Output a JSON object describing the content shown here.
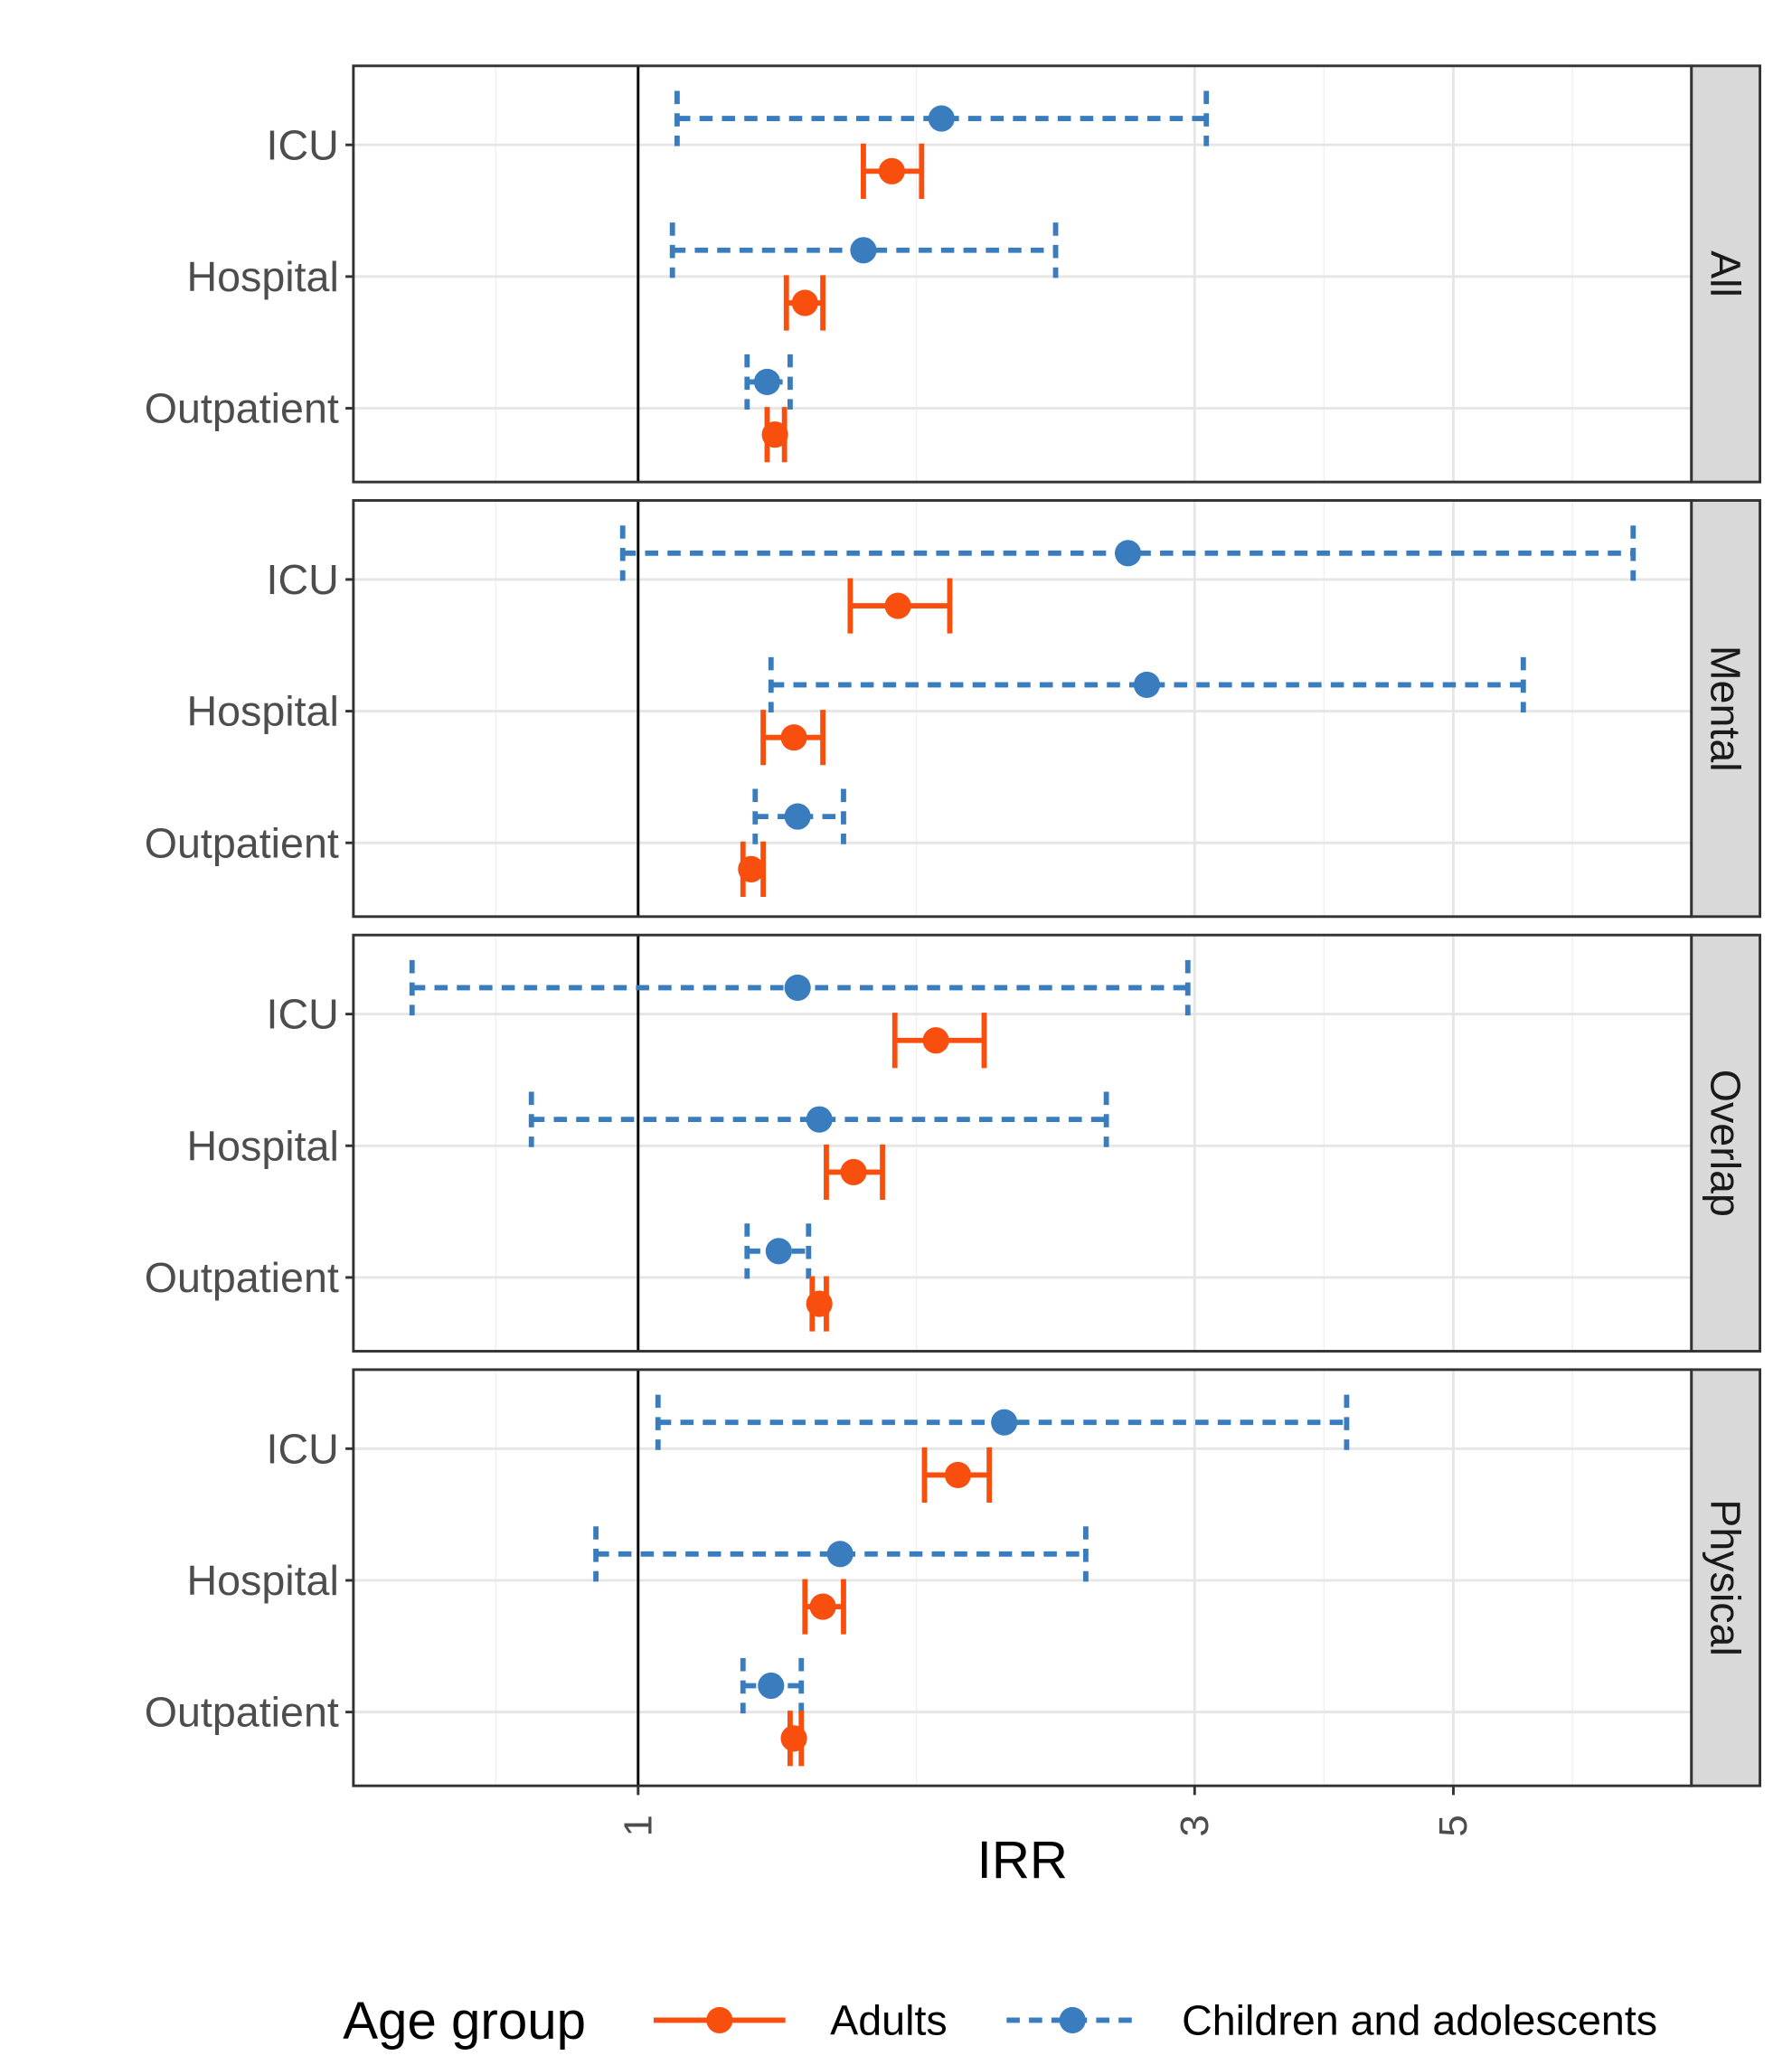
{
  "chart_data": {
    "type": "scatter",
    "subtype": "forest-plot-faceted",
    "xlabel": "IRR",
    "x_scale": "log",
    "xlim": [
      0.57,
      8.0
    ],
    "x_ticks": [
      1,
      3,
      5
    ],
    "x_tick_labels": [
      "1",
      "3",
      "5"
    ],
    "grid": true,
    "reference_line": 1,
    "categories": [
      "ICU",
      "Hospital",
      "Outpatient"
    ],
    "facets": [
      "All",
      "Mental",
      "Overlap",
      "Physical"
    ],
    "legend": {
      "title": "Age group",
      "placement": "bottom",
      "entries": [
        {
          "name": "Adults",
          "color": "#F94F0E",
          "line": "solid"
        },
        {
          "name": "Children and adolescents",
          "color": "#3A7DBF",
          "line": "dashed"
        }
      ]
    },
    "panels": [
      {
        "facet": "All",
        "rows": [
          {
            "category": "ICU",
            "children": {
              "est": 1.82,
              "lo": 1.08,
              "hi": 3.07
            },
            "adults": {
              "est": 1.65,
              "lo": 1.56,
              "hi": 1.75
            }
          },
          {
            "category": "Hospital",
            "children": {
              "est": 1.56,
              "lo": 1.07,
              "hi": 2.28
            },
            "adults": {
              "est": 1.39,
              "lo": 1.34,
              "hi": 1.44
            }
          },
          {
            "category": "Outpatient",
            "children": {
              "est": 1.29,
              "lo": 1.24,
              "hi": 1.35
            },
            "adults": {
              "est": 1.31,
              "lo": 1.29,
              "hi": 1.335
            }
          }
        ]
      },
      {
        "facet": "Mental",
        "rows": [
          {
            "category": "ICU",
            "children": {
              "est": 2.63,
              "lo": 0.97,
              "hi": 7.13
            },
            "adults": {
              "est": 1.67,
              "lo": 1.52,
              "hi": 1.85
            }
          },
          {
            "category": "Hospital",
            "children": {
              "est": 2.73,
              "lo": 1.3,
              "hi": 5.74
            },
            "adults": {
              "est": 1.36,
              "lo": 1.28,
              "hi": 1.44
            }
          },
          {
            "category": "Outpatient",
            "children": {
              "est": 1.37,
              "lo": 1.26,
              "hi": 1.5
            },
            "adults": {
              "est": 1.25,
              "lo": 1.23,
              "hi": 1.28
            }
          }
        ]
      },
      {
        "facet": "Overlap",
        "rows": [
          {
            "category": "ICU",
            "children": {
              "est": 1.37,
              "lo": 0.64,
              "hi": 2.96
            },
            "adults": {
              "est": 1.8,
              "lo": 1.66,
              "hi": 1.98
            }
          },
          {
            "category": "Hospital",
            "children": {
              "est": 1.43,
              "lo": 0.81,
              "hi": 2.52
            },
            "adults": {
              "est": 1.53,
              "lo": 1.45,
              "hi": 1.62
            }
          },
          {
            "category": "Outpatient",
            "children": {
              "est": 1.32,
              "lo": 1.24,
              "hi": 1.4
            },
            "adults": {
              "est": 1.43,
              "lo": 1.41,
              "hi": 1.45
            }
          }
        ]
      },
      {
        "facet": "Physical",
        "rows": [
          {
            "category": "ICU",
            "children": {
              "est": 2.06,
              "lo": 1.04,
              "hi": 4.05
            },
            "adults": {
              "est": 1.88,
              "lo": 1.76,
              "hi": 2.0
            }
          },
          {
            "category": "Hospital",
            "children": {
              "est": 1.49,
              "lo": 0.92,
              "hi": 2.42
            },
            "adults": {
              "est": 1.44,
              "lo": 1.39,
              "hi": 1.5
            }
          },
          {
            "category": "Outpatient",
            "children": {
              "est": 1.3,
              "lo": 1.23,
              "hi": 1.38
            },
            "adults": {
              "est": 1.36,
              "lo": 1.35,
              "hi": 1.38
            }
          }
        ]
      }
    ]
  }
}
